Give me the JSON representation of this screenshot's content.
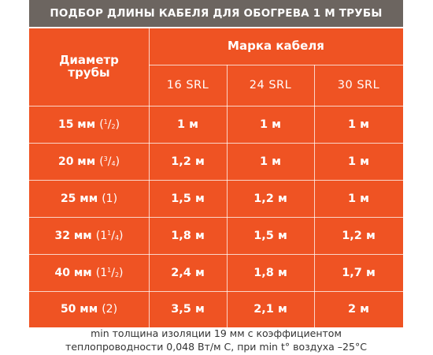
{
  "title": "ПОДБОР ДЛИНЫ КАБЕЛЯ ДЛЯ ОБОГРЕВА 1 М ТРУБЫ",
  "header": {
    "diameter_label_line1": "Диаметр",
    "diameter_label_line2": "трубы",
    "brand_label": "Марка кабеля",
    "columns": [
      "16 SRL",
      "24 SRL",
      "30 SRL"
    ]
  },
  "rows": [
    {
      "size": "15 мм",
      "inch_whole": "",
      "inch_num": "1",
      "inch_den": "2",
      "values": [
        "1 м",
        "1 м",
        "1 м"
      ]
    },
    {
      "size": "20 мм",
      "inch_whole": "",
      "inch_num": "3",
      "inch_den": "4",
      "values": [
        "1,2 м",
        "1 м",
        "1 м"
      ]
    },
    {
      "size": "25 мм",
      "inch_whole": "1",
      "inch_num": "",
      "inch_den": "",
      "values": [
        "1,5 м",
        "1,2 м",
        "1 м"
      ]
    },
    {
      "size": "32 мм",
      "inch_whole": "1",
      "inch_num": "1",
      "inch_den": "4",
      "values": [
        "1,8 м",
        "1,5 м",
        "1,2 м"
      ]
    },
    {
      "size": "40 мм",
      "inch_whole": "1",
      "inch_num": "1",
      "inch_den": "2",
      "values": [
        "2,4 м",
        "1,8 м",
        "1,7 м"
      ]
    },
    {
      "size": "50 мм",
      "inch_whole": "2",
      "inch_num": "",
      "inch_den": "",
      "values": [
        "3,5 м",
        "2,1 м",
        "2 м"
      ]
    }
  ],
  "note_line1": "min толщина изоляции 19 мм с коэффициентом",
  "note_line2": "теплопроводности 0,048 Вт/м С, при min t° воздуха –25°С",
  "colors": {
    "title_bg": "#6c6560",
    "table_bg": "#ef5323",
    "text": "#ffffff"
  }
}
